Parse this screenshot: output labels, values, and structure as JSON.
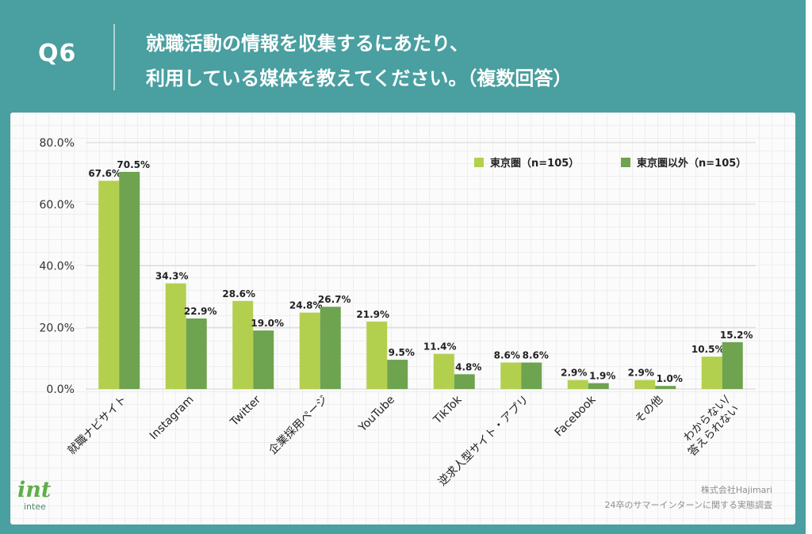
{
  "header": {
    "q_label": "Q6",
    "title_line1": "就職活動の情報を収集するにあたり、",
    "title_line2": "利用している媒体を教えてください。（複数回答）",
    "bg_color": "#4a9fa0"
  },
  "chart_data": {
    "type": "bar",
    "categories": [
      "就職ナビサイト",
      "Instagram",
      "Twitter",
      "企業採用ページ",
      "YouTube",
      "TikTok",
      "逆求人型サイト・アプリ",
      "Facebook",
      "その他",
      "わからない/答えられない"
    ],
    "series": [
      {
        "name": "東京圏（n=105）",
        "color": "#b3cf4e",
        "values": [
          67.6,
          34.3,
          28.6,
          24.8,
          21.9,
          11.4,
          8.6,
          2.9,
          2.9,
          10.5
        ]
      },
      {
        "name": "東京圏以外（n=105）",
        "color": "#6ea350",
        "values": [
          70.5,
          22.9,
          19.0,
          26.7,
          9.5,
          4.8,
          8.6,
          1.9,
          1.0,
          15.2
        ]
      }
    ],
    "yticks": [
      "0.0%",
      "20.0%",
      "40.0%",
      "60.0%",
      "80.0%"
    ],
    "ylim": [
      0,
      80
    ],
    "unit": "%",
    "grid": true,
    "legend_position": "top-right"
  },
  "logo": {
    "mark": "int",
    "text": "intee",
    "color": "#5fae4a"
  },
  "source": {
    "line1": "株式会社Hajimari",
    "line2": "24卒のサマーインターンに関する実態調査"
  }
}
